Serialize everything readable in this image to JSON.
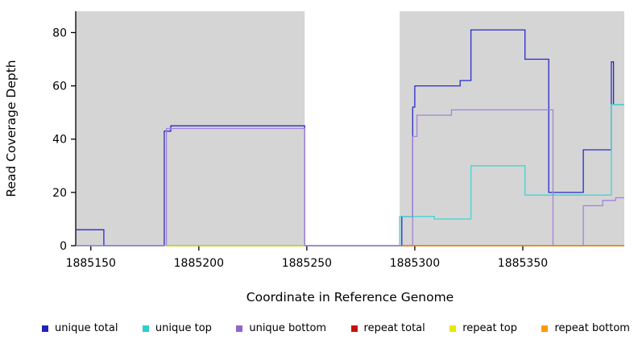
{
  "chart_data": {
    "type": "line",
    "title": "",
    "xlabel": "Coordinate in Reference Genome",
    "ylabel": "Read Coverage Depth",
    "xlim": [
      1885143,
      1885397
    ],
    "ylim": [
      0,
      88
    ],
    "x_ticks": [
      1885150,
      1885200,
      1885250,
      1885300,
      1885350
    ],
    "y_ticks": [
      0,
      20,
      40,
      60,
      80
    ],
    "grid": false,
    "legend_position": "bottom",
    "plot_background": {
      "color": "#d5d5d5",
      "regions": [
        [
          1885143,
          1885249
        ],
        [
          1885293,
          1885397
        ]
      ]
    },
    "series": [
      {
        "name": "unique total",
        "color": "#2929cc",
        "points": [
          [
            1885143,
            6
          ],
          [
            1885156,
            6
          ],
          [
            1885156,
            0
          ],
          [
            1885184,
            0
          ],
          [
            1885184,
            43
          ],
          [
            1885187,
            43
          ],
          [
            1885187,
            45
          ],
          [
            1885249,
            45
          ],
          [
            1885249,
            0
          ],
          [
            1885294,
            0
          ],
          [
            1885294,
            11
          ],
          [
            1885299,
            11
          ],
          [
            1885299,
            52
          ],
          [
            1885300,
            52
          ],
          [
            1885300,
            60
          ],
          [
            1885321,
            60
          ],
          [
            1885321,
            62
          ],
          [
            1885326,
            62
          ],
          [
            1885326,
            81
          ],
          [
            1885351,
            81
          ],
          [
            1885351,
            70
          ],
          [
            1885362,
            70
          ],
          [
            1885362,
            20
          ],
          [
            1885378,
            20
          ],
          [
            1885378,
            36
          ],
          [
            1885391,
            36
          ],
          [
            1885391,
            69
          ],
          [
            1885392,
            69
          ],
          [
            1885392,
            53
          ],
          [
            1885397,
            53
          ]
        ]
      },
      {
        "name": "unique top",
        "color": "#45d2d2",
        "points": [
          [
            1885143,
            0
          ],
          [
            1885293,
            0
          ],
          [
            1885293,
            11
          ],
          [
            1885309,
            11
          ],
          [
            1885309,
            10
          ],
          [
            1885326,
            10
          ],
          [
            1885326,
            30
          ],
          [
            1885351,
            30
          ],
          [
            1885351,
            19
          ],
          [
            1885391,
            19
          ],
          [
            1885391,
            53
          ],
          [
            1885397,
            53
          ]
        ]
      },
      {
        "name": "unique bottom",
        "color": "#a183d9",
        "points": [
          [
            1885143,
            0
          ],
          [
            1885185,
            0
          ],
          [
            1885185,
            44
          ],
          [
            1885249,
            44
          ],
          [
            1885249,
            0
          ],
          [
            1885299,
            0
          ],
          [
            1885299,
            41
          ],
          [
            1885301,
            41
          ],
          [
            1885301,
            49
          ],
          [
            1885317,
            49
          ],
          [
            1885317,
            51
          ],
          [
            1885364,
            51
          ],
          [
            1885364,
            0
          ],
          [
            1885378,
            0
          ],
          [
            1885378,
            15
          ],
          [
            1885387,
            15
          ],
          [
            1885387,
            17
          ],
          [
            1885393,
            17
          ],
          [
            1885393,
            18
          ],
          [
            1885397,
            18
          ]
        ]
      },
      {
        "name": "repeat total",
        "color": "#c41111",
        "points": [
          [
            1885294,
            0
          ],
          [
            1885397,
            0
          ]
        ]
      },
      {
        "name": "repeat top",
        "color": "#e3e300",
        "points": [
          [
            1885184,
            0
          ],
          [
            1885249,
            0
          ]
        ]
      },
      {
        "name": "repeat bottom",
        "color": "#ff9900",
        "points": [
          [
            1885294,
            0
          ],
          [
            1885397,
            0
          ]
        ]
      }
    ],
    "legend": [
      {
        "label": "unique total",
        "color": "#2222bb"
      },
      {
        "label": "unique top",
        "color": "#2fcccc"
      },
      {
        "label": "unique bottom",
        "color": "#9166cc"
      },
      {
        "label": "repeat total",
        "color": "#c41111"
      },
      {
        "label": "repeat top",
        "color": "#e8e800"
      },
      {
        "label": "repeat bottom",
        "color": "#ff9900"
      }
    ]
  }
}
